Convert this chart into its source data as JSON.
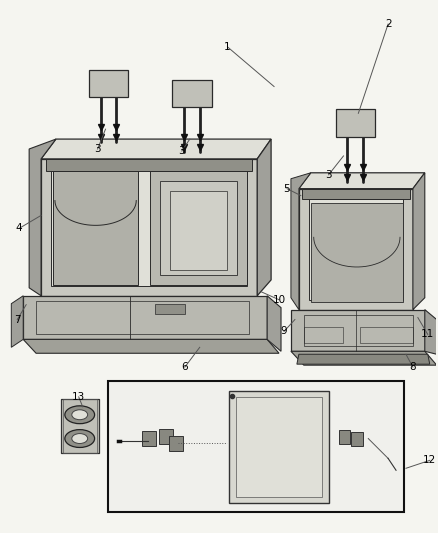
{
  "bg_color": "#f5f5f0",
  "fig_width": 4.38,
  "fig_height": 5.33,
  "dpi": 100,
  "line_color": "#2a2a2a",
  "text_color": "#000000",
  "font_size": 7.5,
  "seat_fill": "#c8c8c0",
  "seat_fill_dark": "#a0a09a",
  "seat_fill_light": "#e0e0d8",
  "cushion_fill": "#b8b8b0",
  "box_line_color": "#111111"
}
